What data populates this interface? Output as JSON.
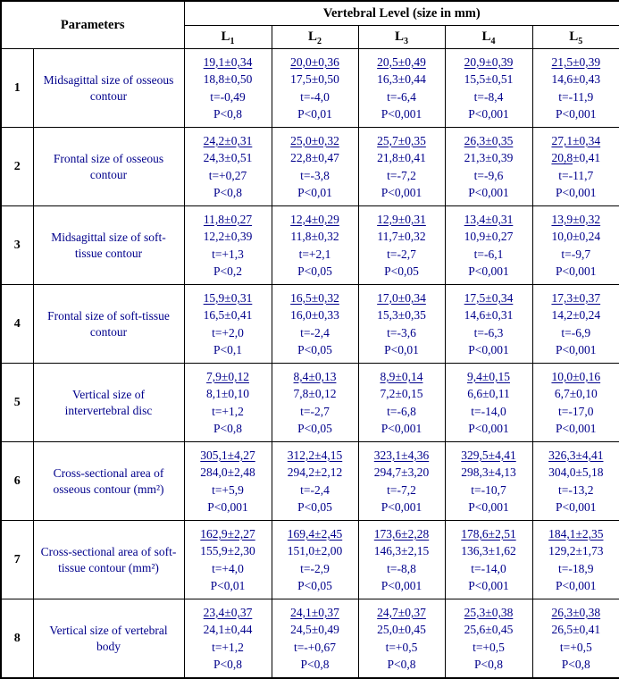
{
  "colors": {
    "ink": "#00008B",
    "header_text": "#000000",
    "border": "#000000",
    "background": "#ffffff"
  },
  "header": {
    "parameters_label": "Parameters",
    "group_label": "Vertebral Level (size in mm)",
    "levels": [
      {
        "base": "L",
        "sub": "1"
      },
      {
        "base": "L",
        "sub": "2"
      },
      {
        "base": "L",
        "sub": "3"
      },
      {
        "base": "L",
        "sub": "4"
      },
      {
        "base": "L",
        "sub": "5"
      }
    ]
  },
  "rows": [
    {
      "num": "1",
      "name": "Midsagittal size of osseous contour",
      "cells": [
        {
          "l1": "19,1±0,34",
          "l2": "18,8±0,50",
          "l3": "t=-0,49",
          "l4": "P<0,8"
        },
        {
          "l1": "20,0±0,36",
          "l2": "17,5±0,50",
          "l3": "t=-4,0",
          "l4": "P<0,01"
        },
        {
          "l1": "20,5±0,49",
          "l2": "16,3±0,44",
          "l3": "t=-6,4",
          "l4": "P<0,001"
        },
        {
          "l1": "20,9±0,39",
          "l2": "15,5±0,51",
          "l3": "t=-8,4",
          "l4": "P<0,001"
        },
        {
          "l1": "21,5±0,39",
          "l2": "14,6±0,43",
          "l3": "t=-11,9",
          "l4": "P<0,001"
        }
      ]
    },
    {
      "num": "2",
      "name": "Frontal size of osseous contour",
      "cells": [
        {
          "l1": "24,2±0,31",
          "l2": "24,3±0,51",
          "l3": "t=+0,27",
          "l4": "P<0,8"
        },
        {
          "l1": "25,0±0,32",
          "l2": "22,8±0,47",
          "l3": "t=-3,8",
          "l4": "P<0,01"
        },
        {
          "l1": "25,7±0,35",
          "l2": "21,8±0,41",
          "l3": "t=-7,2",
          "l4": "P<0,001"
        },
        {
          "l1": "26,3±0,35",
          "l2": "21,3±0,39",
          "l3": "t=-9,6",
          "l4": "P<0,001"
        },
        {
          "l1": "27,1±0,34",
          "l2": "20,8±0,41",
          "u2": "20,8",
          "l3": "t=-11,7",
          "l4": "P<0,001"
        }
      ]
    },
    {
      "num": "3",
      "name": "Midsagittal size of soft-tissue contour",
      "cells": [
        {
          "l1": "11,8±0,27",
          "l2": "12,2±0,39",
          "l3": "t=+1,3",
          "l4": "P<0,2"
        },
        {
          "l1": "12,4±0,29",
          "l2": "11,8±0,32",
          "l3": "t=+2,1",
          "l4": "P<0,05"
        },
        {
          "l1": "12,9±0,31",
          "l2": "11,7±0,32",
          "l3": "t=-2,7",
          "l4": "P<0,05"
        },
        {
          "l1": "13,4±0,31",
          "l2": "10,9±0,27",
          "l3": "t=-6,1",
          "l4": "P<0,001"
        },
        {
          "l1": "13,9±0,32",
          "l2": "10,0±0,24",
          "l3": "t=-9,7",
          "l4": "P<0,001"
        }
      ]
    },
    {
      "num": "4",
      "name": "Frontal size of soft-tissue contour",
      "cells": [
        {
          "l1": "15,9±0,31",
          "l2": "16,5±0,41",
          "l3": "t=+2,0",
          "l4": "P<0,1"
        },
        {
          "l1": "16,5±0,32",
          "l2": "16,0±0,33",
          "l3": "t=-2,4",
          "l4": "P<0,05"
        },
        {
          "l1": "17,0±0,34",
          "l2": "15,3±0,35",
          "l3": "t=-3,6",
          "l4": "P<0,01"
        },
        {
          "l1": "17,5±0,34",
          "l2": "14,6±0,31",
          "l3": "t=-6,3",
          "l4": "P<0,001"
        },
        {
          "l1": "17,3±0,37",
          "l2": "14,2±0,24",
          "l3": "t=-6,9",
          "l4": "P<0,001"
        }
      ]
    },
    {
      "num": "5",
      "name": "Vertical size of intervertebral disc",
      "cells": [
        {
          "l1": "7,9±0,12",
          "l2": "8,1±0,10",
          "l3": "t=+1,2",
          "l4": "P<0,8"
        },
        {
          "l1": "8,4±0,13",
          "l2": "7,8±0,12",
          "l3": "t=-2,7",
          "l4": "P<0,05"
        },
        {
          "l1": "8,9±0,14",
          "l2": "7,2±0,15",
          "l3": "t=-6,8",
          "l4": "P<0,001"
        },
        {
          "l1": "9,4±0,15",
          "l2": "6,6±0,11",
          "l3": "t=-14,0",
          "l4": "P<0,001"
        },
        {
          "l1": "10,0±0,16",
          "l2": "6,7±0,10",
          "l3": "t=-17,0",
          "l4": "P<0,001"
        }
      ]
    },
    {
      "num": "6",
      "name": "Cross-sectional area of osseous contour (mm²)",
      "cells": [
        {
          "l1": "305,1±4,27",
          "l2": "284,0±2,48",
          "l3": "t=+5,9",
          "l4": "P<0,001"
        },
        {
          "l1": "312,2±4,15",
          "l2": "294,2±2,12",
          "l3": "t=-2,4",
          "l4": "P<0,05"
        },
        {
          "l1": "323,1±4,36",
          "l2": "294,7±3,20",
          "l3": "t=-7,2",
          "l4": "P<0,001"
        },
        {
          "l1": "329,5±4,41",
          "l2": "298,3±4,13",
          "l3": "t=-10,7",
          "l4": "P<0,001"
        },
        {
          "l1": "326,3±4,41",
          "l2": "304,0±5,18",
          "l3": "t=-13,2",
          "l4": "P<0,001"
        }
      ]
    },
    {
      "num": "7",
      "name": "Cross-sectional area of soft-tissue contour (mm²)",
      "cells": [
        {
          "l1": "162,9±2,27",
          "l2": "155,9±2,30",
          "l3": "t=+4,0",
          "l4": "P<0,01"
        },
        {
          "l1": "169,4±2,45",
          "l2": "151,0±2,00",
          "l3": "t=-2,9",
          "l4": "P<0,05"
        },
        {
          "l1": "173,6±2,28",
          "l2": "146,3±2,15",
          "l3": "t=-8,8",
          "l4": "P<0,001"
        },
        {
          "l1": "178,6±2,51",
          "l2": "136,3±1,62",
          "l3": "t=-14,0",
          "l4": "P<0,001"
        },
        {
          "l1": "184,1±2,35",
          "l2": "129,2±1,73",
          "l3": "t=-18,9",
          "l4": "P<0,001"
        }
      ]
    },
    {
      "num": "8",
      "name": "Vertical size of vertebral body",
      "cells": [
        {
          "l1": "23,4±0,37",
          "l2": "24,1±0,44",
          "l3": "t=+1,2",
          "l4": "P<0,8"
        },
        {
          "l1": "24,1±0,37",
          "l2": "24,5±0,49",
          "l3": "t=-+0,67",
          "l4": "P<0,8"
        },
        {
          "l1": "24,7±0,37",
          "l2": "25,0±0,45",
          "l3": "t=+0,5",
          "l4": "P<0,8"
        },
        {
          "l1": "25,3±0,38",
          "l2": "25,6±0,45",
          "l3": "t=+0,5",
          "l4": "P<0,8"
        },
        {
          "l1": "26,3±0,38",
          "l2": "26,5±0,41",
          "l3": "t=+0,5",
          "l4": "P<0,8"
        }
      ]
    }
  ]
}
